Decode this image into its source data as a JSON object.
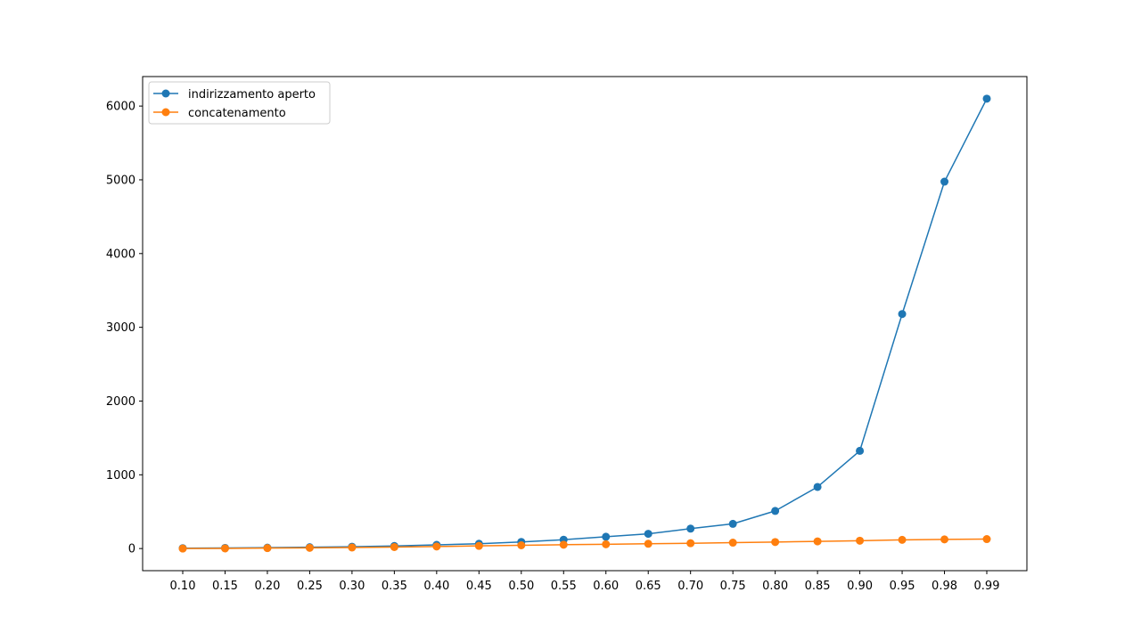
{
  "chart_data": {
    "type": "line",
    "title": "",
    "xlabel": "",
    "ylabel": "",
    "categories": [
      "0.10",
      "0.15",
      "0.20",
      "0.25",
      "0.30",
      "0.35",
      "0.40",
      "0.45",
      "0.50",
      "0.55",
      "0.60",
      "0.65",
      "0.70",
      "0.75",
      "0.80",
      "0.85",
      "0.90",
      "0.95",
      "0.98",
      "0.99"
    ],
    "ylim": [
      -300,
      6400
    ],
    "yticks": [
      0,
      1000,
      2000,
      3000,
      4000,
      5000,
      6000
    ],
    "grid": false,
    "legend_position": "top-left",
    "series": [
      {
        "name": "indirizzamento aperto",
        "color": "#1f77b4",
        "marker": "circle",
        "values": [
          5,
          8,
          12,
          18,
          25,
          35,
          50,
          65,
          90,
          120,
          160,
          200,
          270,
          335,
          510,
          835,
          1325,
          3180,
          4975,
          6100
        ]
      },
      {
        "name": "concatenamento",
        "color": "#ff7f0e",
        "marker": "circle",
        "values": [
          0,
          2,
          6,
          10,
          14,
          20,
          28,
          36,
          44,
          52,
          58,
          65,
          72,
          80,
          88,
          97,
          106,
          118,
          124,
          128
        ]
      }
    ]
  }
}
